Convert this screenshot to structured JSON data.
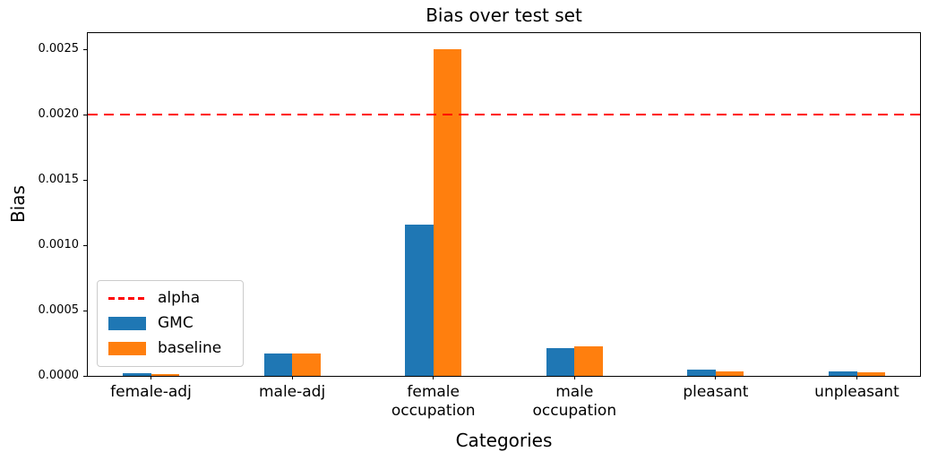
{
  "figure": {
    "title": "Bias over test set",
    "xlabel": "Categories",
    "ylabel": "Bias"
  },
  "chart_data": {
    "type": "bar",
    "title": "Bias over test set",
    "xlabel": "Categories",
    "ylabel": "Bias",
    "categories": [
      "female-adj",
      "male-adj",
      "female\noccupation",
      "male\noccupation",
      "pleasant",
      "unpleasant"
    ],
    "series": [
      {
        "name": "GMC",
        "color": "#1f77b4",
        "values": [
          2e-05,
          0.00017,
          0.00116,
          0.000215,
          5e-05,
          3.8e-05
        ]
      },
      {
        "name": "baseline",
        "color": "#ff7f0e",
        "values": [
          1.5e-05,
          0.00017,
          0.0025,
          0.000225,
          3.8e-05,
          3e-05
        ]
      }
    ],
    "reference_line": {
      "label": "alpha",
      "value": 0.002,
      "color": "#ff0000",
      "style": "dashed"
    },
    "ylim": [
      0,
      0.002625
    ],
    "yticks": [
      0.0,
      0.0005,
      0.001,
      0.0015,
      0.002,
      0.0025
    ],
    "ytick_labels": [
      "0.0000",
      "0.0005",
      "0.0010",
      "0.0015",
      "0.0020",
      "0.0025"
    ],
    "grid": false,
    "legend": {
      "position": "lower left",
      "entries": [
        {
          "label": "alpha",
          "swatch": "dashed-line",
          "color": "#ff0000"
        },
        {
          "label": "GMC",
          "swatch": "rect",
          "color": "#1f77b4"
        },
        {
          "label": "baseline",
          "swatch": "rect",
          "color": "#ff7f0e"
        }
      ]
    }
  }
}
